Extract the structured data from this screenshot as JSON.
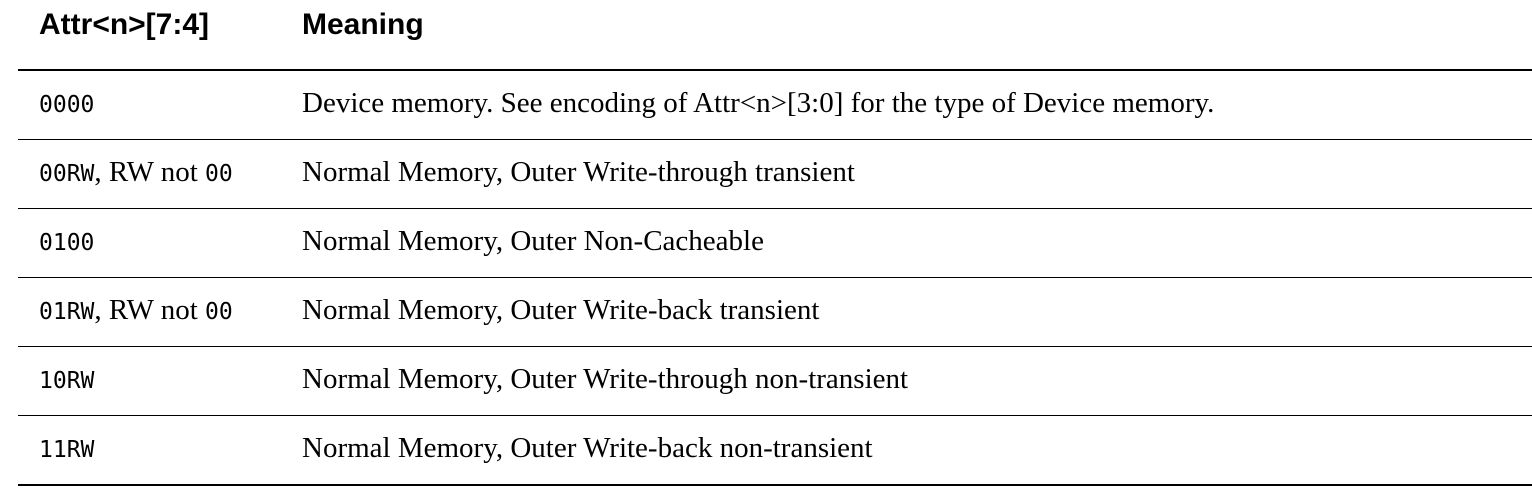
{
  "table": {
    "headers": {
      "col1": "Attr<n>[7:4]",
      "col2": "Meaning"
    },
    "rows": [
      {
        "code": "0000",
        "cond_sep": "",
        "cond_text": "",
        "cond_code": "",
        "meaning": "Device memory. See encoding of Attr<n>[3:0] for the type of Device memory."
      },
      {
        "code": "00RW",
        "cond_sep": ",",
        "cond_text": " RW not ",
        "cond_code": "00",
        "meaning": "Normal Memory, Outer Write-through transient"
      },
      {
        "code": "0100",
        "cond_sep": "",
        "cond_text": "",
        "cond_code": "",
        "meaning": "Normal Memory, Outer Non-Cacheable"
      },
      {
        "code": "01RW",
        "cond_sep": ",",
        "cond_text": " RW not ",
        "cond_code": "00",
        "meaning": "Normal Memory, Outer Write-back transient"
      },
      {
        "code": "10RW",
        "cond_sep": "",
        "cond_text": "",
        "cond_code": "",
        "meaning": "Normal Memory, Outer Write-through non-transient"
      },
      {
        "code": "11RW",
        "cond_sep": "",
        "cond_text": "",
        "cond_code": "",
        "meaning": "Normal Memory, Outer Write-back non-transient"
      }
    ]
  }
}
